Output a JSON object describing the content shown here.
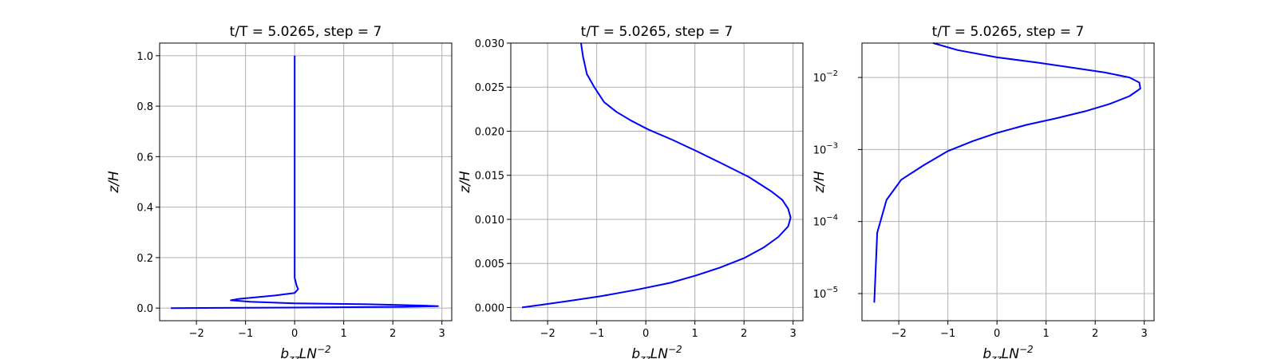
{
  "colors": {
    "line": "#0000ff",
    "grid": "#b0b0b0",
    "background": "#ffffff"
  },
  "chart_data": [
    {
      "type": "line",
      "title": "t/T = 5.0265, step = 7",
      "xlabel": "b_{zz}LN^{-2}",
      "ylabel": "z/H",
      "xlim": [
        -2.75,
        3.2
      ],
      "ylim": [
        -0.05,
        1.05
      ],
      "yscale": "linear",
      "grid": true,
      "xticks": [
        -2,
        -1,
        0,
        1,
        2,
        3
      ],
      "xtick_labels": [
        "−2",
        "−1",
        "0",
        "1",
        "2",
        "3"
      ],
      "yticks": [
        0.0,
        0.2,
        0.4,
        0.6,
        0.8,
        1.0
      ],
      "ytick_labels": [
        "0.0",
        "0.2",
        "0.4",
        "0.6",
        "0.8",
        "1.0"
      ],
      "series": [
        {
          "x": [
            -2.52,
            -1.5,
            0.0,
            2.2,
            2.92,
            2.6,
            1.5,
            0.0,
            -0.9,
            -1.3,
            -1.15,
            -0.4,
            0.0,
            0.07,
            0.04,
            0.0,
            0.0,
            0.0,
            0.0
          ],
          "y": [
            0.0,
            0.001,
            0.002,
            0.005,
            0.0075,
            0.01,
            0.015,
            0.019,
            0.025,
            0.031,
            0.036,
            0.05,
            0.06,
            0.075,
            0.09,
            0.12,
            0.3,
            0.6,
            1.0
          ]
        }
      ]
    },
    {
      "type": "line",
      "title": "t/T = 5.0265, step = 7",
      "xlabel": "b_{zz}LN^{-2}",
      "ylabel": "z/H",
      "xlim": [
        -2.75,
        3.2
      ],
      "ylim": [
        -0.0015,
        0.03
      ],
      "yscale": "linear",
      "grid": true,
      "xticks": [
        -2,
        -1,
        0,
        1,
        2,
        3
      ],
      "xtick_labels": [
        "−2",
        "−1",
        "0",
        "1",
        "2",
        "3"
      ],
      "yticks": [
        0.0,
        0.005,
        0.01,
        0.015,
        0.02,
        0.025,
        0.03
      ],
      "ytick_labels": [
        "0.000",
        "0.005",
        "0.010",
        "0.015",
        "0.020",
        "0.025",
        "0.030"
      ],
      "series": [
        {
          "x": [
            -2.52,
            -2.0,
            -1.5,
            -0.9,
            -0.2,
            0.5,
            1.0,
            1.5,
            2.0,
            2.4,
            2.7,
            2.9,
            2.95,
            2.9,
            2.78,
            2.55,
            2.1,
            1.6,
            1.05,
            0.55,
            0.05,
            -0.3,
            -0.6,
            -0.85,
            -1.05,
            -1.2,
            -1.28,
            -1.32
          ],
          "y": [
            0.0,
            0.0004,
            0.0008,
            0.0013,
            0.002,
            0.0028,
            0.0036,
            0.0045,
            0.0056,
            0.0068,
            0.008,
            0.0092,
            0.0102,
            0.0112,
            0.0122,
            0.0132,
            0.0148,
            0.0162,
            0.0177,
            0.019,
            0.0202,
            0.0212,
            0.0222,
            0.0233,
            0.025,
            0.0265,
            0.0285,
            0.03
          ]
        }
      ]
    },
    {
      "type": "line",
      "title": "t/T = 5.0265, step = 7",
      "xlabel": "b_{zz}LN^{-2}",
      "ylabel": "z/H",
      "xlim": [
        -2.75,
        3.2
      ],
      "ylim": [
        4.2e-06,
        0.03
      ],
      "yscale": "log",
      "grid": true,
      "xticks": [
        -2,
        -1,
        0,
        1,
        2,
        3
      ],
      "xtick_labels": [
        "−2",
        "−1",
        "0",
        "1",
        "2",
        "3"
      ],
      "yticks": [
        1e-05,
        0.0001,
        0.001,
        0.01
      ],
      "ytick_labels": [
        "10",
        "10",
        "10",
        "10"
      ],
      "ytick_exponents": [
        "−5",
        "−4",
        "−3",
        "−2"
      ],
      "series": [
        {
          "x": [
            -2.5,
            -2.44,
            -2.25,
            -1.95,
            -1.5,
            -1.0,
            -0.5,
            0.0,
            0.6,
            1.2,
            1.8,
            2.3,
            2.7,
            2.92,
            2.9,
            2.7,
            2.2,
            1.5,
            0.8,
            0.0,
            -0.8,
            -1.3
          ],
          "y": [
            7.5e-06,
            7e-05,
            0.0002,
            0.00038,
            0.0006,
            0.00095,
            0.0013,
            0.0017,
            0.0022,
            0.0027,
            0.0034,
            0.0043,
            0.0055,
            0.007,
            0.0085,
            0.01,
            0.0117,
            0.0138,
            0.0162,
            0.019,
            0.024,
            0.03
          ]
        }
      ]
    }
  ]
}
